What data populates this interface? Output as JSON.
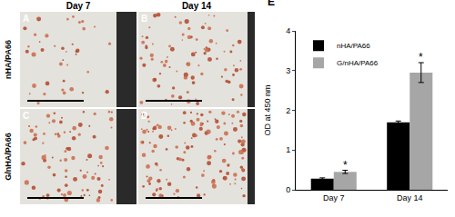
{
  "figure": {
    "columns": [
      "Day 7",
      "Day 14"
    ],
    "rows": [
      "nHA/PA66",
      "G/nHA/PA66"
    ],
    "panels": [
      [
        "A",
        "B"
      ],
      [
        "C",
        "D"
      ]
    ]
  },
  "chart_data": {
    "type": "bar",
    "panel_label": "E",
    "categories": [
      "Day 7",
      "Day 14"
    ],
    "series": [
      {
        "name": "nHA/PA66",
        "color": "#000000",
        "values": [
          0.28,
          1.7
        ],
        "errors": [
          0.02,
          0.03
        ]
      },
      {
        "name": "G/nHA/PA66",
        "color": "#a6a6a6",
        "values": [
          0.45,
          2.95
        ],
        "errors": [
          0.04,
          0.25
        ]
      }
    ],
    "y_label": "OD at 450 nm",
    "ylim": [
      0,
      4
    ],
    "yticks": [
      0,
      1,
      2,
      3,
      4
    ],
    "legend": "top-left",
    "grid": false,
    "annotations": [
      {
        "text": "*",
        "category": "Day 7",
        "series": "G/nHA/PA66"
      },
      {
        "text": "*",
        "category": "Day 14",
        "series": "G/nHA/PA66"
      }
    ]
  }
}
